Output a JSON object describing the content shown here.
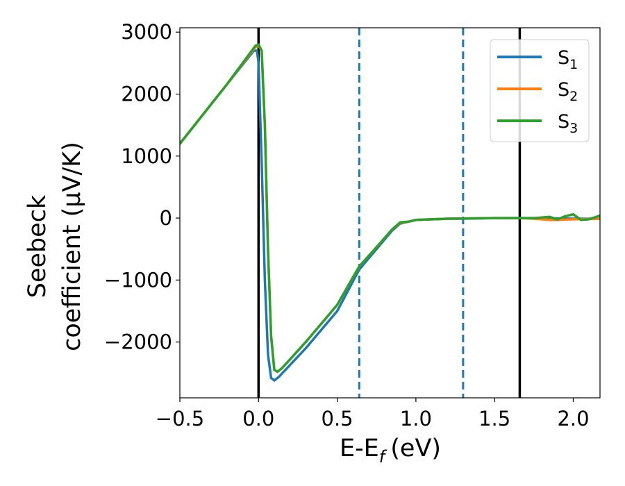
{
  "chart_data": {
    "type": "line",
    "xlabel": "E-E",
    "xlabel_sub": "f",
    "xlabel_unit": "(eV)",
    "ylabel_line1": "Seebeck",
    "ylabel_line2": "coefficient  (μV/K)",
    "xlim": [
      -0.5,
      2.17
    ],
    "ylim": [
      -2900,
      3070
    ],
    "x_ticks": [
      -0.5,
      0.0,
      0.5,
      1.0,
      1.5,
      2.0
    ],
    "x_tick_labels": [
      "−0.5",
      "0.0",
      "0.5",
      "1.0",
      "1.5",
      "2.0"
    ],
    "y_ticks": [
      -2000,
      -1000,
      0,
      1000,
      2000,
      3000
    ],
    "y_tick_labels": [
      "−2000",
      "−1000",
      "0",
      "1000",
      "2000",
      "3000"
    ],
    "legend_position": "top-right",
    "series": [
      {
        "name": "S",
        "sub": "1",
        "color": "#1f77b4",
        "points": [
          [
            -0.5,
            1200
          ],
          [
            -0.2,
            2160
          ],
          [
            -0.03,
            2700
          ],
          [
            -0.01,
            2700
          ],
          [
            0.0,
            2500
          ],
          [
            0.02,
            900
          ],
          [
            0.04,
            -1000
          ],
          [
            0.06,
            -2200
          ],
          [
            0.08,
            -2580
          ],
          [
            0.1,
            -2620
          ],
          [
            0.13,
            -2560
          ],
          [
            0.3,
            -2100
          ],
          [
            0.5,
            -1500
          ],
          [
            0.64,
            -830
          ],
          [
            0.75,
            -500
          ],
          [
            0.85,
            -200
          ],
          [
            0.9,
            -90
          ],
          [
            0.95,
            -60
          ],
          [
            1.0,
            -30
          ],
          [
            1.1,
            -20
          ],
          [
            1.2,
            -10
          ],
          [
            1.3,
            -10
          ],
          [
            1.5,
            0
          ],
          [
            1.66,
            0
          ],
          [
            1.8,
            0
          ],
          [
            2.0,
            -10
          ],
          [
            2.17,
            -10
          ]
        ]
      },
      {
        "name": "S",
        "sub": "2",
        "color": "#ff7f0e",
        "points": [
          [
            -0.5,
            1200
          ],
          [
            -0.2,
            2160
          ],
          [
            -0.02,
            2760
          ],
          [
            0.0,
            2780
          ],
          [
            0.02,
            2700
          ],
          [
            0.04,
            1500
          ],
          [
            0.06,
            -500
          ],
          [
            0.08,
            -1900
          ],
          [
            0.1,
            -2450
          ],
          [
            0.12,
            -2480
          ],
          [
            0.15,
            -2420
          ],
          [
            0.3,
            -2000
          ],
          [
            0.5,
            -1400
          ],
          [
            0.64,
            -780
          ],
          [
            0.75,
            -470
          ],
          [
            0.85,
            -180
          ],
          [
            0.9,
            -80
          ],
          [
            0.95,
            -60
          ],
          [
            1.0,
            -30
          ],
          [
            1.1,
            -20
          ],
          [
            1.2,
            -10
          ],
          [
            1.5,
            0
          ],
          [
            1.66,
            0
          ],
          [
            1.75,
            -10
          ],
          [
            1.85,
            -30
          ],
          [
            1.9,
            -30
          ],
          [
            2.0,
            -20
          ],
          [
            2.17,
            -10
          ]
        ]
      },
      {
        "name": "S",
        "sub": "3",
        "color": "#2ca02c",
        "points": [
          [
            -0.5,
            1200
          ],
          [
            -0.2,
            2160
          ],
          [
            -0.02,
            2780
          ],
          [
            0.0,
            2800
          ],
          [
            0.02,
            2700
          ],
          [
            0.04,
            1500
          ],
          [
            0.06,
            -500
          ],
          [
            0.08,
            -1900
          ],
          [
            0.1,
            -2450
          ],
          [
            0.12,
            -2480
          ],
          [
            0.15,
            -2420
          ],
          [
            0.3,
            -2000
          ],
          [
            0.5,
            -1400
          ],
          [
            0.64,
            -780
          ],
          [
            0.75,
            -470
          ],
          [
            0.85,
            -180
          ],
          [
            0.9,
            -70
          ],
          [
            0.95,
            -60
          ],
          [
            1.0,
            -30
          ],
          [
            1.1,
            -20
          ],
          [
            1.2,
            -10
          ],
          [
            1.5,
            0
          ],
          [
            1.66,
            0
          ],
          [
            1.75,
            0
          ],
          [
            1.8,
            10
          ],
          [
            1.85,
            20
          ],
          [
            1.9,
            -20
          ],
          [
            1.95,
            30
          ],
          [
            2.0,
            60
          ],
          [
            2.05,
            -30
          ],
          [
            2.1,
            -20
          ],
          [
            2.17,
            40
          ]
        ]
      }
    ],
    "vlines": [
      {
        "x": 0.0,
        "color": "#000000",
        "style": "solid"
      },
      {
        "x": 1.66,
        "color": "#000000",
        "style": "solid"
      },
      {
        "x": 0.64,
        "color": "#1f77b4",
        "style": "dashed"
      },
      {
        "x": 1.3,
        "color": "#1f77b4",
        "style": "dashed"
      }
    ]
  }
}
